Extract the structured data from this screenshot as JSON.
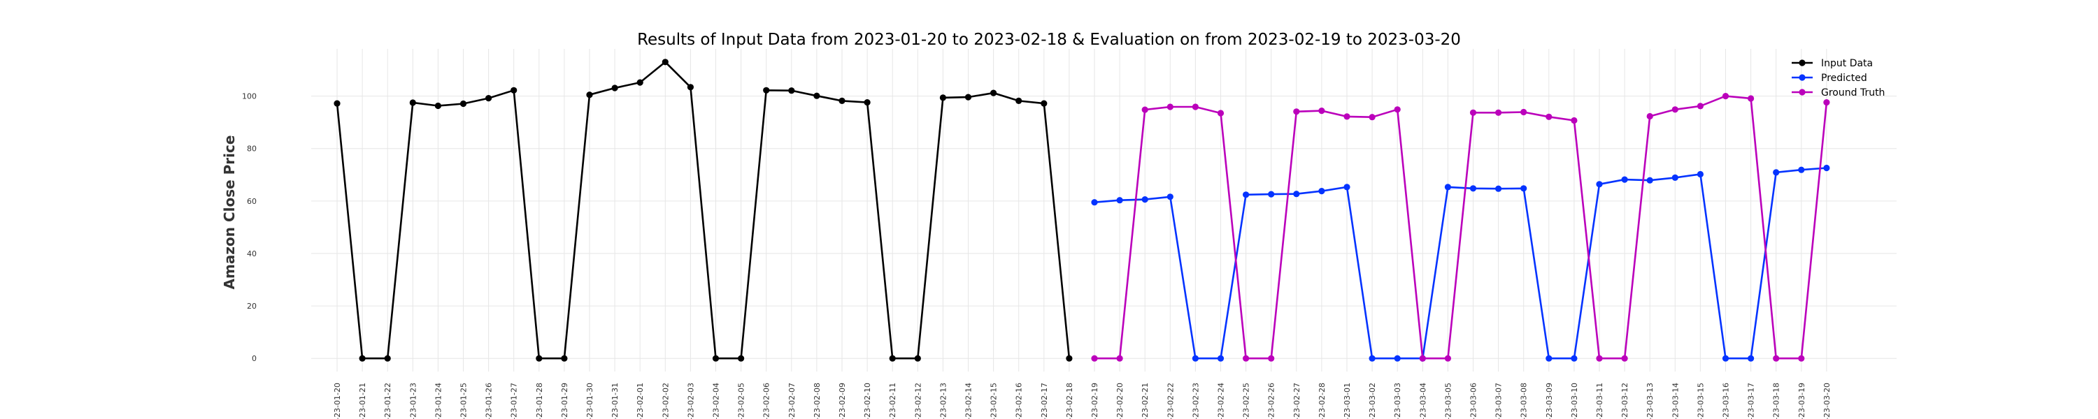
{
  "chart_data": {
    "type": "line",
    "title": "Results of Input Data from 2023-01-20 to 2023-02-18 & Evaluation on from 2023-02-19 to 2023-03-20",
    "xlabel": "",
    "ylabel": "Amazon Close Price",
    "ylim": [
      -5,
      118
    ],
    "yticks": [
      0,
      20,
      40,
      60,
      80,
      100
    ],
    "grid": true,
    "legend_position": "top-right",
    "x": [
      "2023-01-20",
      "2023-01-21",
      "2023-01-22",
      "2023-01-23",
      "2023-01-24",
      "2023-01-25",
      "2023-01-26",
      "2023-01-27",
      "2023-01-28",
      "2023-01-29",
      "2023-01-30",
      "2023-01-31",
      "2023-02-01",
      "2023-02-02",
      "2023-02-03",
      "2023-02-04",
      "2023-02-05",
      "2023-02-06",
      "2023-02-07",
      "2023-02-08",
      "2023-02-09",
      "2023-02-10",
      "2023-02-11",
      "2023-02-12",
      "2023-02-13",
      "2023-02-14",
      "2023-02-15",
      "2023-02-16",
      "2023-02-17",
      "2023-02-18",
      "2023-02-19",
      "2023-02-20",
      "2023-02-21",
      "2023-02-22",
      "2023-02-23",
      "2023-02-24",
      "2023-02-25",
      "2023-02-26",
      "2023-02-27",
      "2023-02-28",
      "2023-03-01",
      "2023-03-02",
      "2023-03-03",
      "2023-03-04",
      "2023-03-05",
      "2023-03-06",
      "2023-03-07",
      "2023-03-08",
      "2023-03-09",
      "2023-03-10",
      "2023-03-11",
      "2023-03-12",
      "2023-03-13",
      "2023-03-14",
      "2023-03-15",
      "2023-03-16",
      "2023-03-17",
      "2023-03-18",
      "2023-03-19",
      "2023-03-20"
    ],
    "x_tick_labels": [
      "-23-01-20",
      "-23-01-21",
      "-23-01-22",
      "-23-01-23",
      "-23-01-24",
      "-23-01-25",
      "-23-01-26",
      "-23-01-27",
      "-23-01-28",
      "-23-01-29",
      "-23-01-30",
      "-23-01-31",
      "-23-02-01",
      "-23-02-02",
      "-23-02-03",
      "-23-02-04",
      "-23-02-05",
      "-23-02-06",
      "-23-02-07",
      "-23-02-08",
      "-23-02-09",
      "-23-02-10",
      "-23-02-11",
      "-23-02-12",
      "-23-02-13",
      "-23-02-14",
      "-23-02-15",
      "-23-02-16",
      "-23-02-17",
      "-23-02-18",
      "-23-02-19",
      "-23-02-20",
      "-23-02-21",
      "-23-02-22",
      "-23-02-23",
      "-23-02-24",
      "-23-02-25",
      "-23-02-26",
      "-23-02-27",
      "-23-02-28",
      "-23-03-01",
      "-23-03-02",
      "-23-03-03",
      "-23-03-04",
      "-23-03-05",
      "-23-03-06",
      "-23-03-07",
      "-23-03-08",
      "-23-03-09",
      "-23-03-10",
      "-23-03-11",
      "-23-03-12",
      "-23-03-13",
      "-23-03-14",
      "-23-03-15",
      "-23-03-16",
      "-23-03-17",
      "-23-03-18",
      "-23-03-19",
      "-23-03-20"
    ],
    "series": [
      {
        "name": "Input Data",
        "color": "#000000",
        "x": [
          "2023-01-20",
          "2023-01-21",
          "2023-01-22",
          "2023-01-23",
          "2023-01-24",
          "2023-01-25",
          "2023-01-26",
          "2023-01-27",
          "2023-01-28",
          "2023-01-29",
          "2023-01-30",
          "2023-01-31",
          "2023-02-01",
          "2023-02-02",
          "2023-02-03",
          "2023-02-04",
          "2023-02-05",
          "2023-02-06",
          "2023-02-07",
          "2023-02-08",
          "2023-02-09",
          "2023-02-10",
          "2023-02-11",
          "2023-02-12",
          "2023-02-13",
          "2023-02-14",
          "2023-02-15",
          "2023-02-16",
          "2023-02-17",
          "2023-02-18"
        ],
        "values": [
          97.2,
          0,
          0,
          97.5,
          96.3,
          97.1,
          99.2,
          102.2,
          0,
          0,
          100.5,
          103.1,
          105.2,
          113.0,
          103.4,
          0,
          0,
          102.2,
          102.1,
          100.1,
          98.2,
          97.6,
          0,
          0,
          99.4,
          99.6,
          101.2,
          98.2,
          97.2,
          0
        ]
      },
      {
        "name": "Predicted",
        "color": "#0433ff",
        "x": [
          "2023-02-19",
          "2023-02-20",
          "2023-02-21",
          "2023-02-22",
          "2023-02-23",
          "2023-02-24",
          "2023-02-25",
          "2023-02-26",
          "2023-02-27",
          "2023-02-28",
          "2023-03-01",
          "2023-03-02",
          "2023-03-03",
          "2023-03-04",
          "2023-03-05",
          "2023-03-06",
          "2023-03-07",
          "2023-03-08",
          "2023-03-09",
          "2023-03-10",
          "2023-03-11",
          "2023-03-12",
          "2023-03-13",
          "2023-03-14",
          "2023-03-15",
          "2023-03-16",
          "2023-03-17",
          "2023-03-18",
          "2023-03-19",
          "2023-03-20"
        ],
        "values": [
          59.5,
          60.3,
          60.6,
          61.6,
          0,
          0,
          62.4,
          62.6,
          62.7,
          63.8,
          65.3,
          0,
          0,
          0,
          65.3,
          64.8,
          64.7,
          64.8,
          0,
          0,
          66.4,
          68.2,
          67.9,
          68.9,
          70.2,
          0,
          0,
          70.9,
          71.9,
          72.6
        ]
      },
      {
        "name": "Ground Truth",
        "color": "#bb00bb",
        "x": [
          "2023-02-19",
          "2023-02-20",
          "2023-02-21",
          "2023-02-22",
          "2023-02-23",
          "2023-02-24",
          "2023-02-25",
          "2023-02-26",
          "2023-02-27",
          "2023-02-28",
          "2023-03-01",
          "2023-03-02",
          "2023-03-03",
          "2023-03-04",
          "2023-03-05",
          "2023-03-06",
          "2023-03-07",
          "2023-03-08",
          "2023-03-09",
          "2023-03-10",
          "2023-03-11",
          "2023-03-12",
          "2023-03-13",
          "2023-03-14",
          "2023-03-15",
          "2023-03-16",
          "2023-03-17",
          "2023-03-18",
          "2023-03-19",
          "2023-03-20"
        ],
        "values": [
          0,
          0,
          94.8,
          95.9,
          95.9,
          93.5,
          0,
          0,
          94.1,
          94.4,
          92.2,
          92.0,
          94.9,
          0,
          0,
          93.7,
          93.7,
          93.9,
          92.1,
          90.7,
          0,
          0,
          92.3,
          94.9,
          96.2,
          100.0,
          99.1,
          0,
          0,
          97.6
        ]
      }
    ]
  }
}
